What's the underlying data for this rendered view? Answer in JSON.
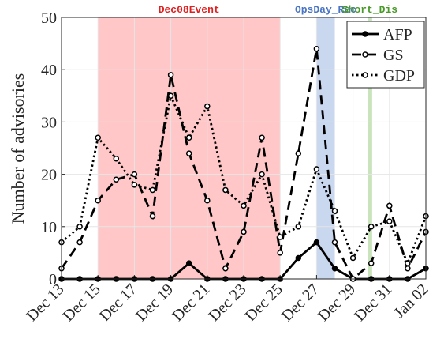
{
  "chart_data": {
    "type": "line",
    "ylabel": "Number of advisories",
    "categories": [
      "Dec 13",
      null,
      "Dec 15",
      null,
      "Dec 17",
      null,
      "Dec 19",
      null,
      "Dec 21",
      null,
      "Dec 23",
      null,
      "Dec 25",
      null,
      "Dec 27",
      null,
      "Dec 29",
      null,
      "Dec 31",
      null,
      "Jan 02"
    ],
    "spans": [
      {
        "label": "Dec08Event",
        "start": 2,
        "end": 12,
        "color": "#ffc7c7",
        "label_color": "#e02020"
      },
      {
        "label": "OpsDay_Rec",
        "start": 14,
        "end": 15,
        "color": "#c9d7ef",
        "label_color": "#4a74c4"
      },
      {
        "label": "Short_Dis",
        "start": 16.8,
        "end": 17.05,
        "color": "#c9e3bd",
        "label_color": "#4a9a2a"
      }
    ],
    "series": [
      {
        "name": "AFP",
        "color": "#000000",
        "dash": "solid",
        "marker_fill": "#000000",
        "values": [
          0,
          0,
          0,
          0,
          0,
          0,
          0,
          3,
          0,
          0,
          0,
          0,
          0,
          4,
          7,
          2,
          0,
          0,
          0,
          0,
          2
        ]
      },
      {
        "name": "GS",
        "color": "#000000",
        "dash": "dashed",
        "marker_fill": "#ffffff",
        "values": [
          2,
          7,
          15,
          19,
          20,
          12,
          39,
          24,
          15,
          2,
          9,
          27,
          5,
          24,
          44,
          7,
          0,
          3,
          14,
          2,
          9
        ]
      },
      {
        "name": "GDP",
        "color": "#000000",
        "dash": "dotted",
        "marker_fill": "#ffffff",
        "values": [
          7,
          10,
          27,
          23,
          18,
          17,
          35,
          27,
          33,
          17,
          14,
          20,
          8,
          10,
          21,
          13,
          4,
          10,
          11,
          3,
          12
        ]
      }
    ],
    "ylim": [
      0,
      50
    ],
    "yticks": [
      0,
      10,
      20,
      30,
      40,
      50
    ],
    "grid": true,
    "legend": "upper right"
  }
}
